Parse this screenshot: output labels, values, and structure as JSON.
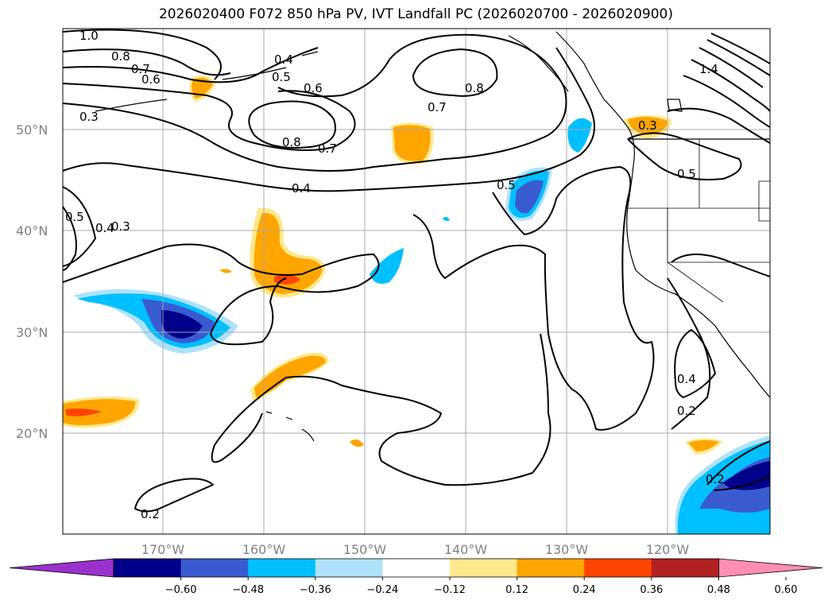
{
  "title": "2026020400 F072 850 hPa PV, IVT Landfall PC (2026020700 - 2026020900)",
  "map": {
    "lat_labels": [
      "50°N",
      "40°N",
      "30°N",
      "20°N"
    ],
    "lon_labels": [
      "170°W",
      "160°W",
      "150°W",
      "140°W",
      "130°W",
      "120°W"
    ],
    "contour_labels": [
      "1.0",
      "0.8",
      "0.7",
      "0.6",
      "0.4",
      "0.5",
      "0.6",
      "0.3",
      "0.8",
      "0.7",
      "0.8",
      "0.7",
      "0.4",
      "0.5",
      "0.4",
      "0.3",
      "0.5",
      "0.3",
      "0.5",
      "0.4",
      "0.2",
      "0.2",
      "0.2",
      "1.4"
    ]
  },
  "colorbar": {
    "ticks": [
      "−0.60",
      "−0.48",
      "−0.36",
      "−0.24",
      "−0.12",
      "0.12",
      "0.24",
      "0.36",
      "0.48",
      "0.60"
    ],
    "colors": [
      "#9932cc",
      "#00008b",
      "#3a5bd0",
      "#00bfff",
      "#aee2fa",
      "#ffffff",
      "#ffe98a",
      "#ffa500",
      "#ff4500",
      "#b22222",
      "#ff8fb0"
    ]
  }
}
